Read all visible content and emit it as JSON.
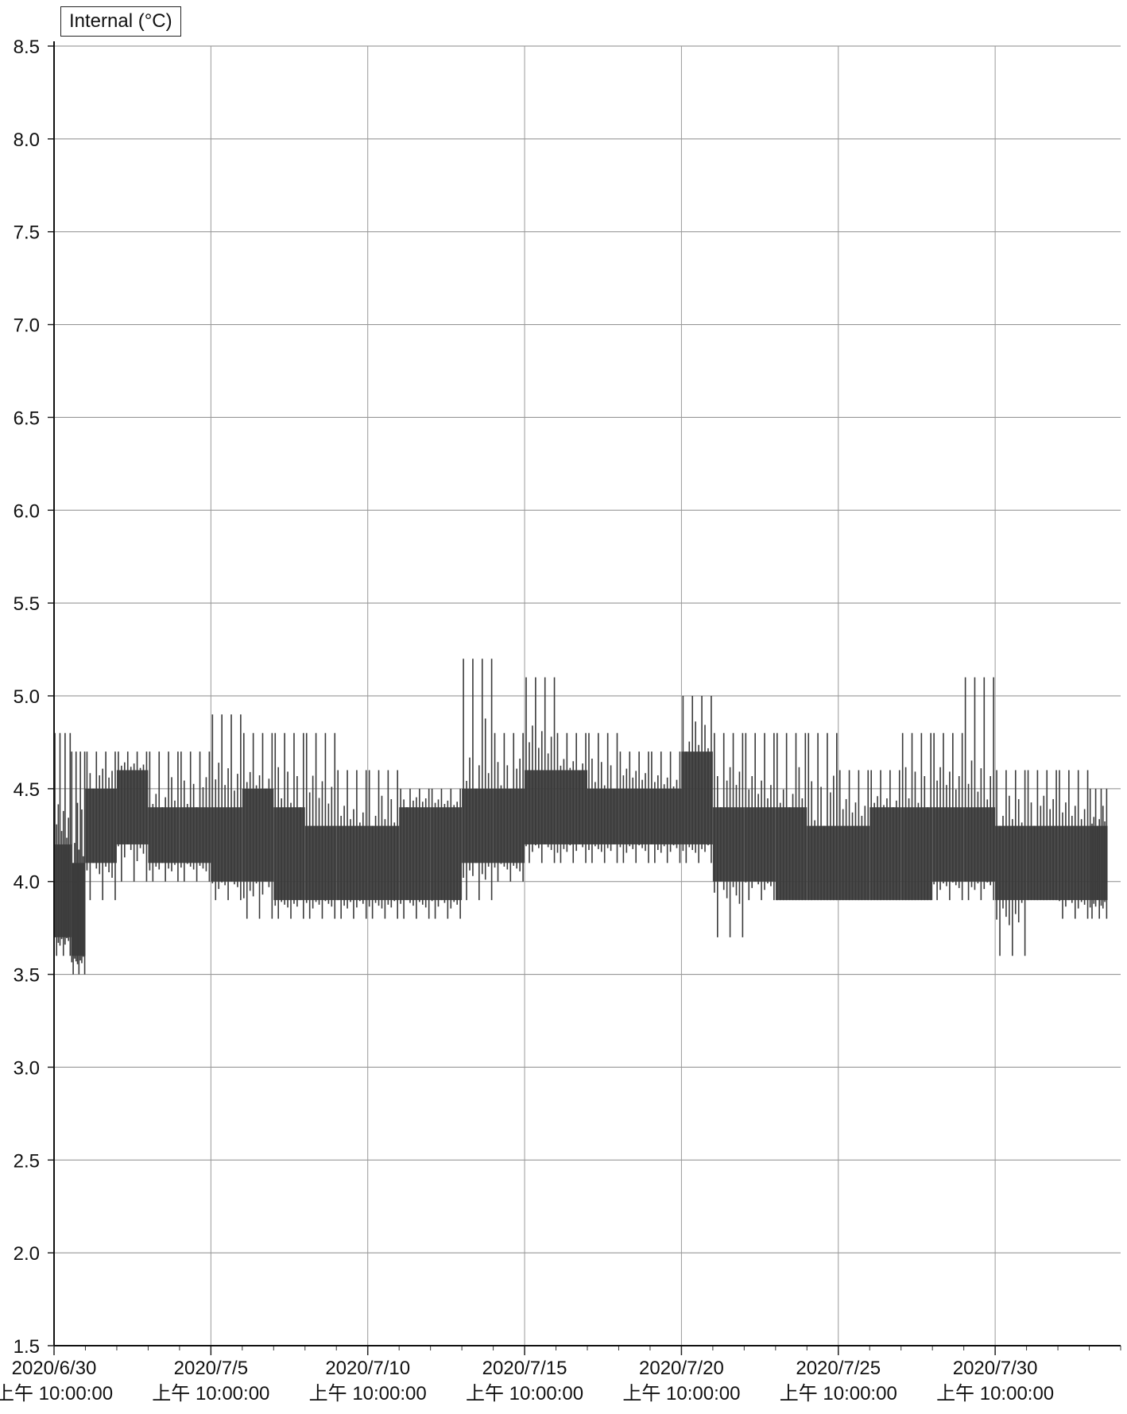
{
  "legend": {
    "label": "Internal (°C)"
  },
  "chart_data": {
    "type": "line",
    "title": "",
    "xlabel": "",
    "ylabel": "",
    "ylim": [
      1.5,
      8.5
    ],
    "yticks": [
      1.5,
      2.0,
      2.5,
      3.0,
      3.5,
      4.0,
      4.5,
      5.0,
      5.5,
      6.0,
      6.5,
      7.0,
      7.5,
      8.0,
      8.5
    ],
    "ytick_labels": [
      "1.5",
      "2.0",
      "2.5",
      "3.0",
      "3.5",
      "4.0",
      "4.5",
      "5.0",
      "5.5",
      "6.0",
      "6.5",
      "7.0",
      "7.5",
      "8.0",
      "8.5"
    ],
    "xlim": [
      "2020/6/30 10:00:00",
      "2020/8/3 10:00:00"
    ],
    "xticks": [
      {
        "date": "2020/6/30",
        "time": "上午 10:00:00",
        "datetime": "2020/6/30 10:00:00"
      },
      {
        "date": "2020/7/5",
        "time": "上午 10:00:00",
        "datetime": "2020/7/5 10:00:00"
      },
      {
        "date": "2020/7/10",
        "time": "上午 10:00:00",
        "datetime": "2020/7/10 10:00:00"
      },
      {
        "date": "2020/7/15",
        "time": "上午 10:00:00",
        "datetime": "2020/7/15 10:00:00"
      },
      {
        "date": "2020/7/20",
        "time": "上午 10:00:00",
        "datetime": "2020/7/20 10:00:00"
      },
      {
        "date": "2020/7/25",
        "time": "上午 10:00:00",
        "datetime": "2020/7/25 10:00:00"
      },
      {
        "date": "2020/7/30",
        "time": "上午 10:00:00",
        "datetime": "2020/7/30 10:00:00"
      }
    ],
    "grid": true,
    "legend_position": "top-left",
    "series": [
      {
        "name": "Internal (°C)",
        "color": "#3a3a3a",
        "band": [
          {
            "start": "2020/6/30 10:00",
            "end": "2020/6/30 23:00",
            "low": 3.7,
            "high": 4.2,
            "min": 3.6,
            "max": 4.8
          },
          {
            "start": "2020/6/30 23:00",
            "end": "2020/7/1 10:00",
            "low": 3.6,
            "high": 4.1,
            "min": 3.5,
            "max": 4.7
          },
          {
            "start": "2020/7/1 10:00",
            "end": "2020/7/2 10:00",
            "low": 4.1,
            "high": 4.5,
            "min": 3.9,
            "max": 4.7
          },
          {
            "start": "2020/7/2 10:00",
            "end": "2020/7/3 10:00",
            "low": 4.2,
            "high": 4.6,
            "min": 4.0,
            "max": 4.7
          },
          {
            "start": "2020/7/3 10:00",
            "end": "2020/7/4 10:00",
            "low": 4.1,
            "high": 4.4,
            "min": 4.0,
            "max": 4.7
          },
          {
            "start": "2020/7/4 10:00",
            "end": "2020/7/5 10:00",
            "low": 4.1,
            "high": 4.4,
            "min": 4.0,
            "max": 4.7
          },
          {
            "start": "2020/7/5 10:00",
            "end": "2020/7/6 10:00",
            "low": 4.0,
            "high": 4.4,
            "min": 3.9,
            "max": 4.9
          },
          {
            "start": "2020/7/6 10:00",
            "end": "2020/7/7 10:00",
            "low": 4.0,
            "high": 4.5,
            "min": 3.8,
            "max": 4.8
          },
          {
            "start": "2020/7/7 10:00",
            "end": "2020/7/8 10:00",
            "low": 3.9,
            "high": 4.4,
            "min": 3.8,
            "max": 4.8
          },
          {
            "start": "2020/7/8 10:00",
            "end": "2020/7/9 10:00",
            "low": 3.9,
            "high": 4.3,
            "min": 3.8,
            "max": 4.8
          },
          {
            "start": "2020/7/9 10:00",
            "end": "2020/7/10 10:00",
            "low": 3.9,
            "high": 4.3,
            "min": 3.8,
            "max": 4.6
          },
          {
            "start": "2020/7/10 10:00",
            "end": "2020/7/11 10:00",
            "low": 3.9,
            "high": 4.3,
            "min": 3.8,
            "max": 4.6
          },
          {
            "start": "2020/7/11 10:00",
            "end": "2020/7/12 10:00",
            "low": 3.9,
            "high": 4.4,
            "min": 3.8,
            "max": 4.5
          },
          {
            "start": "2020/7/12 10:00",
            "end": "2020/7/13 10:00",
            "low": 3.9,
            "high": 4.4,
            "min": 3.8,
            "max": 4.5
          },
          {
            "start": "2020/7/13 10:00",
            "end": "2020/7/14 10:00",
            "low": 4.1,
            "high": 4.5,
            "min": 3.9,
            "max": 5.2
          },
          {
            "start": "2020/7/14 10:00",
            "end": "2020/7/15 10:00",
            "low": 4.1,
            "high": 4.5,
            "min": 4.0,
            "max": 4.8
          },
          {
            "start": "2020/7/15 10:00",
            "end": "2020/7/16 10:00",
            "low": 4.2,
            "high": 4.6,
            "min": 4.1,
            "max": 5.1
          },
          {
            "start": "2020/7/16 10:00",
            "end": "2020/7/17 10:00",
            "low": 4.2,
            "high": 4.6,
            "min": 4.1,
            "max": 4.8
          },
          {
            "start": "2020/7/17 10:00",
            "end": "2020/7/18 10:00",
            "low": 4.2,
            "high": 4.5,
            "min": 4.1,
            "max": 4.8
          },
          {
            "start": "2020/7/18 10:00",
            "end": "2020/7/19 10:00",
            "low": 4.2,
            "high": 4.5,
            "min": 4.1,
            "max": 4.7
          },
          {
            "start": "2020/7/19 10:00",
            "end": "2020/7/20 10:00",
            "low": 4.2,
            "high": 4.5,
            "min": 4.1,
            "max": 4.7
          },
          {
            "start": "2020/7/20 10:00",
            "end": "2020/7/21 10:00",
            "low": 4.2,
            "high": 4.7,
            "min": 4.1,
            "max": 5.0
          },
          {
            "start": "2020/7/21 10:00",
            "end": "2020/7/22 10:00",
            "low": 4.0,
            "high": 4.4,
            "min": 3.7,
            "max": 4.8
          },
          {
            "start": "2020/7/22 10:00",
            "end": "2020/7/23 10:00",
            "low": 4.0,
            "high": 4.4,
            "min": 3.9,
            "max": 4.8
          },
          {
            "start": "2020/7/23 10:00",
            "end": "2020/7/24 10:00",
            "low": 3.9,
            "high": 4.4,
            "min": 3.9,
            "max": 4.8
          },
          {
            "start": "2020/7/24 10:00",
            "end": "2020/7/25 10:00",
            "low": 3.9,
            "high": 4.3,
            "min": 3.9,
            "max": 4.8
          },
          {
            "start": "2020/7/25 10:00",
            "end": "2020/7/26 10:00",
            "low": 3.9,
            "high": 4.3,
            "min": 3.9,
            "max": 4.6
          },
          {
            "start": "2020/7/26 10:00",
            "end": "2020/7/27 10:00",
            "low": 3.9,
            "high": 4.4,
            "min": 3.9,
            "max": 4.6
          },
          {
            "start": "2020/7/27 10:00",
            "end": "2020/7/28 10:00",
            "low": 3.9,
            "high": 4.4,
            "min": 3.9,
            "max": 4.8
          },
          {
            "start": "2020/7/28 10:00",
            "end": "2020/7/29 10:00",
            "low": 4.0,
            "high": 4.4,
            "min": 3.9,
            "max": 4.8
          },
          {
            "start": "2020/7/29 10:00",
            "end": "2020/7/30 10:00",
            "low": 4.0,
            "high": 4.4,
            "min": 3.9,
            "max": 5.1
          },
          {
            "start": "2020/7/30 10:00",
            "end": "2020/7/31 10:00",
            "low": 3.9,
            "high": 4.3,
            "min": 3.6,
            "max": 4.6
          },
          {
            "start": "2020/7/31 10:00",
            "end": "2020/8/1 10:00",
            "low": 3.9,
            "high": 4.3,
            "min": 3.9,
            "max": 4.6
          },
          {
            "start": "2020/8/1 10:00",
            "end": "2020/8/2 10:00",
            "low": 3.9,
            "high": 4.3,
            "min": 3.8,
            "max": 4.6
          },
          {
            "start": "2020/8/2 10:00",
            "end": "2020/8/3 0:00",
            "low": 3.9,
            "high": 4.3,
            "min": 3.8,
            "max": 4.5
          }
        ]
      }
    ]
  }
}
